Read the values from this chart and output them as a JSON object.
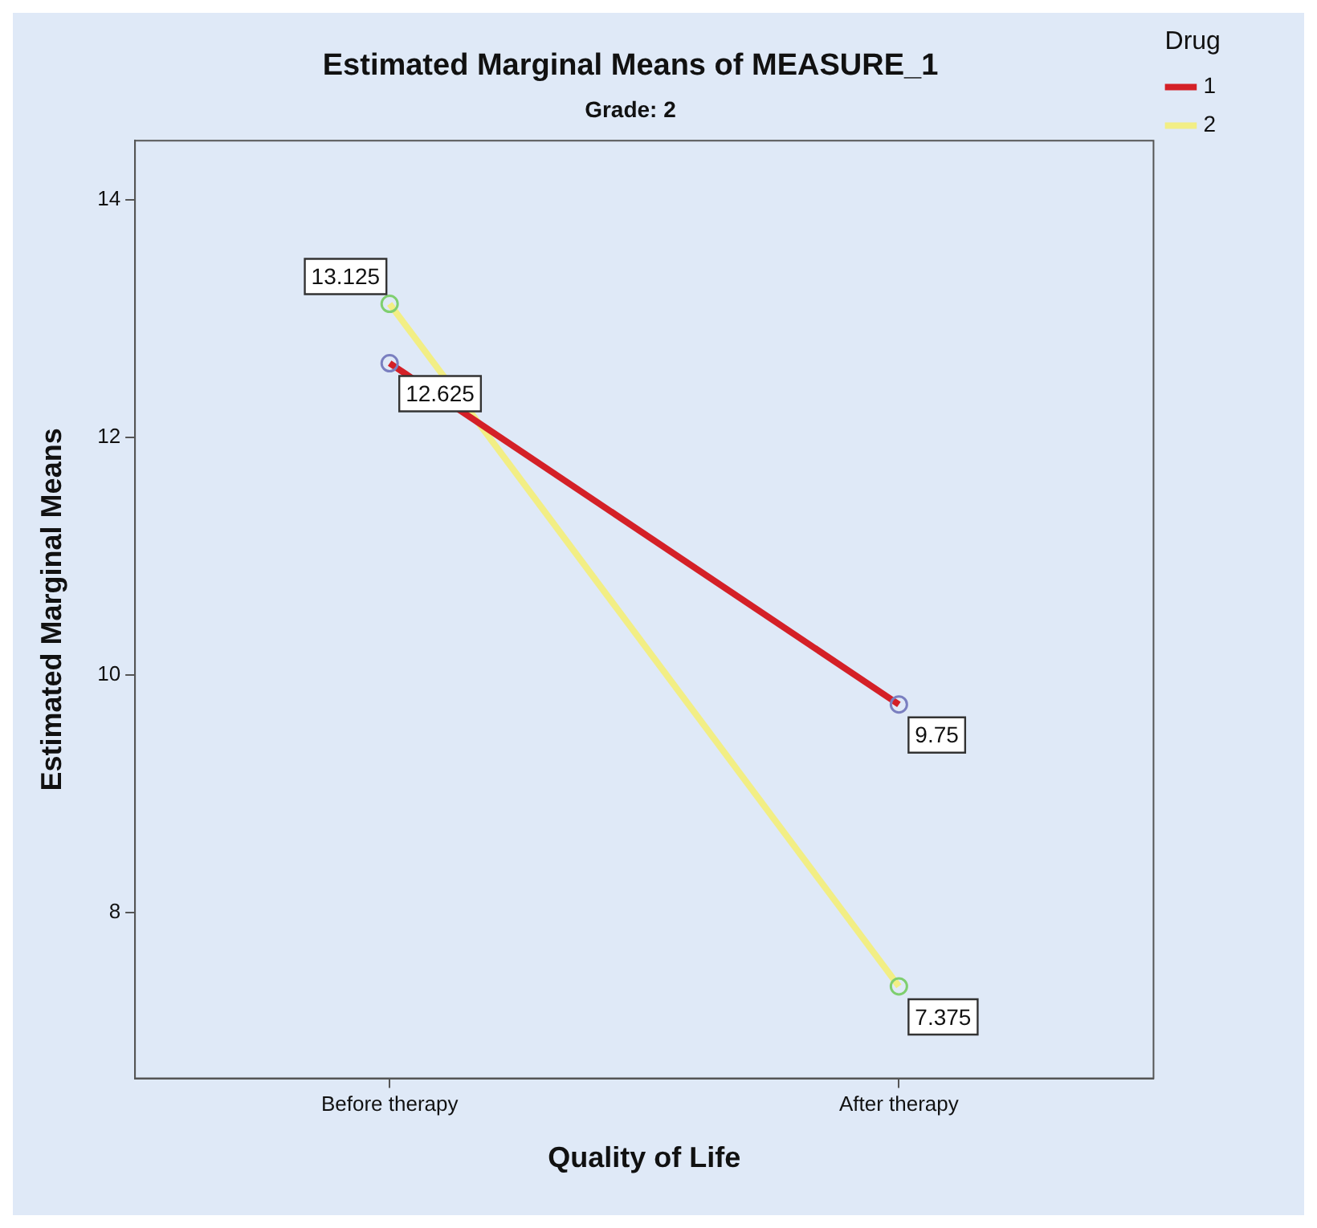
{
  "chart_data": {
    "type": "line",
    "title": "Estimated Marginal Means of MEASURE_1",
    "subtitle": "Grade: 2",
    "xlabel": "Quality of Life",
    "ylabel": "Estimated Marginal Means",
    "legend_title": "Drug",
    "categories": [
      "Before therapy",
      "After therapy"
    ],
    "series": [
      {
        "name": "1",
        "color": "#d42027",
        "values": [
          12.625,
          9.75
        ]
      },
      {
        "name": "2",
        "color": "#f2ee85",
        "values": [
          13.125,
          7.375
        ]
      }
    ],
    "ylim": [
      6.6,
      14.5
    ],
    "yticks": [
      8,
      10,
      12,
      14
    ],
    "grid": false,
    "legend": "right",
    "marker": "circle",
    "line_style": "solid",
    "data_labels": true
  }
}
